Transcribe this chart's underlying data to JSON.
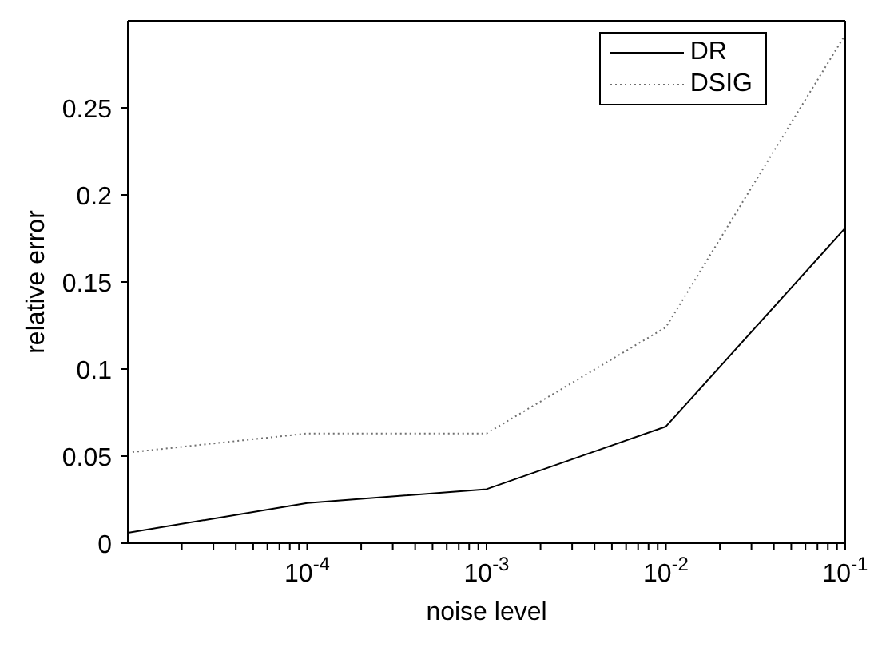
{
  "chart_data": {
    "type": "line",
    "xlabel": "noise level",
    "ylabel": "relative error",
    "x": [
      1e-05,
      0.0001,
      0.001,
      0.01,
      0.1
    ],
    "series": [
      {
        "name": "DR",
        "color": "#000000",
        "line_style": "solid",
        "values": [
          0.006,
          0.023,
          0.031,
          0.067,
          0.181
        ]
      },
      {
        "name": "DSIG",
        "color": "#707070",
        "line_style": "dotted",
        "values": [
          0.052,
          0.063,
          0.063,
          0.124,
          0.292
        ]
      }
    ],
    "log": "x",
    "xlim": [
      1e-05,
      0.1
    ],
    "xticks": [
      {
        "value": 2e-05,
        "label": null
      },
      {
        "value": 3e-05,
        "label": null
      },
      {
        "value": 4e-05,
        "label": null
      },
      {
        "value": 5e-05,
        "label": null
      },
      {
        "value": 6e-05,
        "label": null
      },
      {
        "value": 7e-05,
        "label": null
      },
      {
        "value": 8e-05,
        "label": null
      },
      {
        "value": 9e-05,
        "label": null
      },
      {
        "value": 0.0001,
        "label": "10$^{-4}$"
      },
      {
        "value": 0.0002,
        "label": null
      },
      {
        "value": 0.0003,
        "label": null
      },
      {
        "value": 0.0004,
        "label": null
      },
      {
        "value": 0.0005,
        "label": null
      },
      {
        "value": 0.0006,
        "label": null
      },
      {
        "value": 0.0007,
        "label": null
      },
      {
        "value": 0.0008,
        "label": null
      },
      {
        "value": 0.0009,
        "label": null
      },
      {
        "value": 0.001,
        "label": "10$^{-3}$"
      },
      {
        "value": 0.002,
        "label": null
      },
      {
        "value": 0.003,
        "label": null
      },
      {
        "value": 0.004,
        "label": null
      },
      {
        "value": 0.005,
        "label": null
      },
      {
        "value": 0.006,
        "label": null
      },
      {
        "value": 0.007,
        "label": null
      },
      {
        "value": 0.008,
        "label": null
      },
      {
        "value": 0.009,
        "label": null
      },
      {
        "value": 0.01,
        "label": "10$^{-2}$"
      },
      {
        "value": 0.02,
        "label": null
      },
      {
        "value": 0.03,
        "label": null
      },
      {
        "value": 0.04,
        "label": null
      },
      {
        "value": 0.05,
        "label": null
      },
      {
        "value": 0.06,
        "label": null
      },
      {
        "value": 0.07,
        "label": null
      },
      {
        "value": 0.08,
        "label": null
      },
      {
        "value": 0.09,
        "label": null
      },
      {
        "value": 0.1,
        "label": "10$^{-1}$"
      }
    ],
    "ylim": [
      0,
      0.3
    ],
    "yticks": [
      0,
      0.05,
      0.1,
      0.15,
      0.2,
      0.25
    ],
    "grid": false,
    "legend": "top right",
    "marker": "none"
  }
}
